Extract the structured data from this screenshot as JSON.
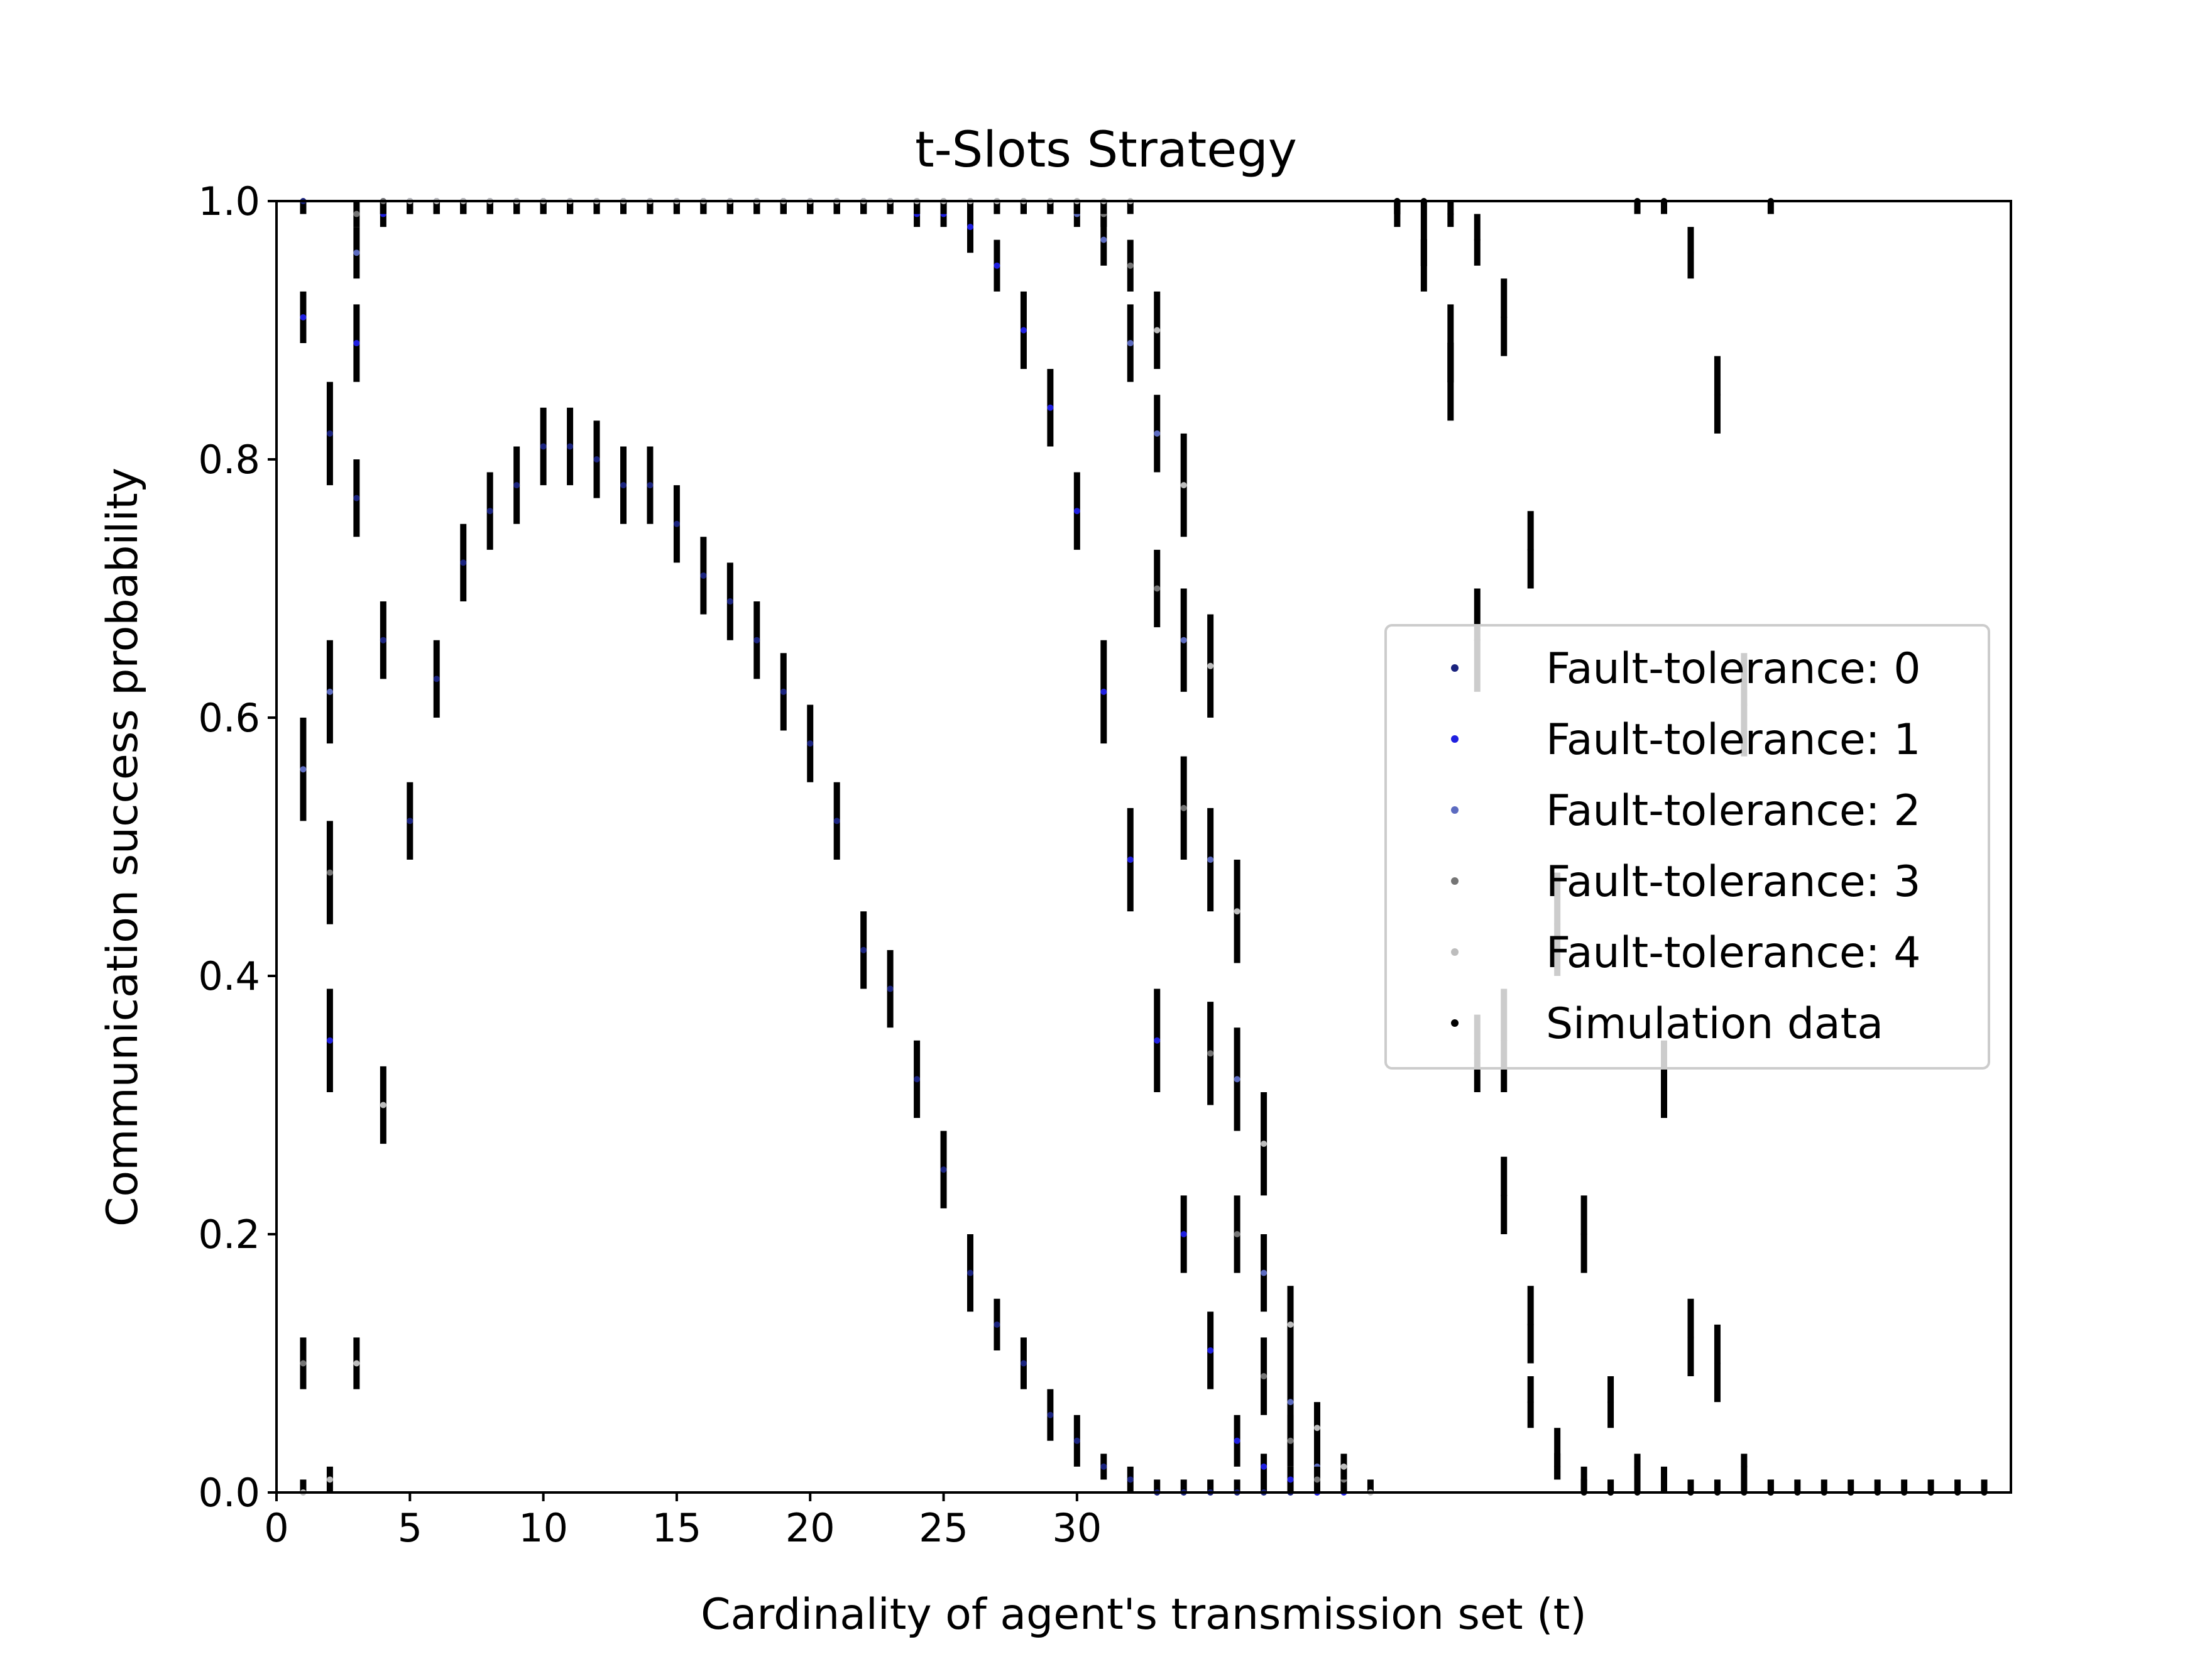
{
  "chart_data": {
    "type": "scatter",
    "title": "t-Slots Strategy",
    "xlabel": "Cardinality of agent's transmission set (t)",
    "ylabel": "Communication success probability",
    "xlim": [
      0,
      65
    ],
    "ylim": [
      0,
      1
    ],
    "xticks": [
      0,
      5,
      10,
      15,
      20,
      25,
      30
    ],
    "yticks": [
      0.0,
      0.2,
      0.4,
      0.6,
      0.8,
      1.0
    ],
    "ytick_labels": [
      "0.0",
      "0.2",
      "0.4",
      "0.6",
      "0.8",
      "1.0"
    ],
    "grid": false,
    "legend_position": "center-right",
    "error_bar_color": "#000000",
    "series": [
      {
        "name": "Fault-tolerance: 0",
        "color": "#1a237e",
        "x": [
          1,
          2,
          3,
          4,
          5,
          6,
          7,
          8,
          9,
          10,
          11,
          12,
          13,
          14,
          15,
          16,
          17,
          18,
          19,
          20,
          21,
          22,
          23,
          24,
          25,
          26,
          27,
          28,
          29,
          30,
          31,
          32,
          33,
          34,
          35,
          36,
          37,
          38,
          39
        ],
        "y": [
          1.0,
          0.82,
          0.77,
          0.66,
          0.52,
          0.63,
          0.72,
          0.76,
          0.78,
          0.81,
          0.81,
          0.8,
          0.78,
          0.78,
          0.75,
          0.71,
          0.69,
          0.66,
          0.62,
          0.58,
          0.52,
          0.42,
          0.39,
          0.32,
          0.25,
          0.17,
          0.13,
          0.1,
          0.06,
          0.04,
          0.02,
          0.01,
          0.0,
          0.0,
          0.0,
          0.0,
          0.0,
          0.0,
          0.0
        ],
        "err": [
          0.01,
          0.04,
          0.03,
          0.03,
          0.03,
          0.03,
          0.03,
          0.03,
          0.03,
          0.03,
          0.03,
          0.03,
          0.03,
          0.03,
          0.03,
          0.03,
          0.03,
          0.03,
          0.03,
          0.03,
          0.03,
          0.03,
          0.03,
          0.03,
          0.03,
          0.03,
          0.02,
          0.02,
          0.02,
          0.02,
          0.01,
          0.01,
          0.01,
          0.01,
          0.01,
          0.01,
          0.01,
          0.01,
          0.01
        ]
      },
      {
        "name": "Fault-tolerance: 1",
        "color": "#1f1fe0",
        "x": [
          1,
          2,
          3,
          4,
          5,
          6,
          7,
          8,
          9,
          10,
          11,
          12,
          13,
          14,
          15,
          16,
          17,
          18,
          19,
          20,
          21,
          22,
          23,
          24,
          25,
          26,
          27,
          28,
          29,
          30,
          31,
          32,
          33,
          34,
          35,
          36,
          37,
          38,
          39,
          40
        ],
        "y": [
          0.91,
          0.35,
          0.89,
          0.99,
          1.0,
          1.0,
          1.0,
          1.0,
          1.0,
          1.0,
          1.0,
          1.0,
          1.0,
          1.0,
          1.0,
          1.0,
          1.0,
          1.0,
          1.0,
          1.0,
          1.0,
          1.0,
          1.0,
          0.99,
          0.99,
          0.98,
          0.95,
          0.9,
          0.84,
          0.76,
          0.62,
          0.49,
          0.35,
          0.2,
          0.11,
          0.04,
          0.02,
          0.01,
          0.0,
          0.0
        ],
        "err": [
          0.02,
          0.04,
          0.03,
          0.01,
          0.01,
          0.01,
          0.01,
          0.01,
          0.01,
          0.01,
          0.01,
          0.01,
          0.01,
          0.01,
          0.01,
          0.01,
          0.01,
          0.01,
          0.01,
          0.01,
          0.01,
          0.01,
          0.01,
          0.01,
          0.01,
          0.02,
          0.02,
          0.03,
          0.03,
          0.03,
          0.04,
          0.04,
          0.04,
          0.03,
          0.03,
          0.02,
          0.01,
          0.01,
          0.01,
          0.01
        ]
      },
      {
        "name": "Fault-tolerance: 2",
        "color": "#5c6bc0",
        "x": [
          1,
          2,
          3,
          4,
          5,
          6,
          7,
          8,
          9,
          10,
          11,
          12,
          13,
          14,
          15,
          16,
          17,
          18,
          19,
          20,
          21,
          22,
          23,
          24,
          25,
          26,
          27,
          28,
          29,
          30,
          31,
          32,
          33,
          34,
          35,
          36,
          37,
          38,
          39,
          40
        ],
        "y": [
          0.56,
          0.62,
          0.96,
          1.0,
          1.0,
          1.0,
          1.0,
          1.0,
          1.0,
          1.0,
          1.0,
          1.0,
          1.0,
          1.0,
          1.0,
          1.0,
          1.0,
          1.0,
          1.0,
          1.0,
          1.0,
          1.0,
          1.0,
          1.0,
          1.0,
          1.0,
          1.0,
          1.0,
          1.0,
          0.99,
          0.97,
          0.89,
          0.82,
          0.66,
          0.49,
          0.32,
          0.17,
          0.07,
          0.02,
          0.01
        ],
        "err": [
          0.04,
          0.04,
          0.02,
          0.01,
          0.01,
          0.01,
          0.01,
          0.01,
          0.01,
          0.01,
          0.01,
          0.01,
          0.01,
          0.01,
          0.01,
          0.01,
          0.01,
          0.01,
          0.01,
          0.01,
          0.01,
          0.01,
          0.01,
          0.01,
          0.01,
          0.01,
          0.01,
          0.01,
          0.01,
          0.01,
          0.02,
          0.03,
          0.03,
          0.04,
          0.04,
          0.04,
          0.03,
          0.03,
          0.02,
          0.01
        ]
      },
      {
        "name": "Fault-tolerance: 3",
        "color": "#757575",
        "x": [
          1,
          2,
          3,
          4,
          5,
          6,
          7,
          8,
          9,
          10,
          11,
          12,
          13,
          14,
          15,
          16,
          17,
          18,
          19,
          20,
          21,
          22,
          23,
          24,
          25,
          26,
          27,
          28,
          29,
          30,
          31,
          32,
          33,
          34,
          35,
          36,
          37,
          38,
          39,
          40
        ],
        "y": [
          0.1,
          0.48,
          0.99,
          1.0,
          1.0,
          1.0,
          1.0,
          1.0,
          1.0,
          1.0,
          1.0,
          1.0,
          1.0,
          1.0,
          1.0,
          1.0,
          1.0,
          1.0,
          1.0,
          1.0,
          1.0,
          1.0,
          1.0,
          1.0,
          1.0,
          1.0,
          1.0,
          1.0,
          1.0,
          1.0,
          0.99,
          0.95,
          0.7,
          0.53,
          0.34,
          0.2,
          0.09,
          0.04,
          0.01,
          0.01
        ],
        "err": [
          0.02,
          0.04,
          0.01,
          0.01,
          0.01,
          0.01,
          0.01,
          0.01,
          0.01,
          0.01,
          0.01,
          0.01,
          0.01,
          0.01,
          0.01,
          0.01,
          0.01,
          0.01,
          0.01,
          0.01,
          0.01,
          0.01,
          0.01,
          0.01,
          0.01,
          0.01,
          0.01,
          0.01,
          0.01,
          0.01,
          0.01,
          0.02,
          0.03,
          0.04,
          0.04,
          0.03,
          0.03,
          0.02,
          0.01,
          0.01
        ]
      },
      {
        "name": "Fault-tolerance: 4",
        "color": "#bdbdbd",
        "x": [
          1,
          2,
          3,
          4,
          5,
          6,
          7,
          8,
          9,
          10,
          11,
          12,
          13,
          14,
          15,
          16,
          17,
          18,
          19,
          20,
          21,
          22,
          23,
          24,
          25,
          26,
          27,
          28,
          29,
          30,
          31,
          32,
          33,
          34,
          35,
          36,
          37,
          38,
          39,
          40,
          41
        ],
        "y": [
          0.0,
          0.01,
          0.1,
          0.3,
          1.0,
          1.0,
          1.0,
          1.0,
          1.0,
          1.0,
          1.0,
          1.0,
          1.0,
          1.0,
          1.0,
          1.0,
          1.0,
          1.0,
          1.0,
          1.0,
          1.0,
          1.0,
          1.0,
          1.0,
          1.0,
          1.0,
          1.0,
          1.0,
          1.0,
          1.0,
          1.0,
          1.0,
          0.9,
          0.78,
          0.64,
          0.45,
          0.27,
          0.13,
          0.05,
          0.02,
          0.0
        ],
        "err": [
          0.01,
          0.01,
          0.02,
          0.03,
          0.01,
          0.01,
          0.01,
          0.01,
          0.01,
          0.01,
          0.01,
          0.01,
          0.01,
          0.01,
          0.01,
          0.01,
          0.01,
          0.01,
          0.01,
          0.01,
          0.01,
          0.01,
          0.01,
          0.01,
          0.01,
          0.01,
          0.01,
          0.01,
          0.01,
          0.01,
          0.01,
          0.01,
          0.03,
          0.04,
          0.04,
          0.04,
          0.04,
          0.03,
          0.02,
          0.01,
          0.01
        ]
      },
      {
        "name": "Simulation data",
        "color": "#000000",
        "x": [
          42,
          43,
          44,
          45,
          46,
          47,
          48,
          49,
          50,
          51,
          52,
          53,
          54,
          55,
          56,
          57,
          58,
          59,
          60,
          61,
          62,
          63,
          64,
          42,
          43,
          44,
          45,
          46,
          47,
          48,
          49,
          50,
          51,
          52,
          53,
          54,
          55,
          56,
          42,
          43,
          44,
          45,
          46,
          47,
          48,
          49,
          50,
          51,
          52,
          53,
          54,
          55,
          56
        ],
        "y": [
          1.0,
          1.0,
          0.99,
          0.97,
          0.91,
          0.73,
          0.44,
          0.2,
          0.07,
          0.02,
          0.01,
          0.0,
          0.0,
          0.0,
          0.0,
          0.0,
          0.0,
          0.0,
          0.0,
          0.0,
          0.0,
          0.0,
          0.0,
          0.99,
          0.95,
          0.86,
          0.66,
          0.35,
          0.13,
          0.03,
          0.0,
          0.0,
          1.0,
          1.0,
          0.96,
          0.85,
          0.61,
          1.0,
          1.0,
          0.97,
          0.89,
          0.34,
          0.23,
          0.07,
          0.02,
          0.01,
          0.0,
          0.0,
          0.32,
          0.12,
          0.1,
          0.02,
          0.0
        ],
        "err": [
          0.01,
          0.01,
          0.01,
          0.02,
          0.03,
          0.03,
          0.04,
          0.03,
          0.02,
          0.01,
          0.01,
          0.01,
          0.01,
          0.01,
          0.01,
          0.01,
          0.01,
          0.01,
          0.01,
          0.01,
          0.01,
          0.01,
          0.01,
          0.01,
          0.02,
          0.03,
          0.04,
          0.04,
          0.03,
          0.02,
          0.01,
          0.01,
          0.01,
          0.01,
          0.02,
          0.03,
          0.04,
          0.01,
          0.01,
          0.02,
          0.03,
          0.03,
          0.03,
          0.02,
          0.01,
          0.01,
          0.01,
          0.01,
          0.03,
          0.03,
          0.03,
          0.01,
          0.01
        ]
      }
    ]
  }
}
